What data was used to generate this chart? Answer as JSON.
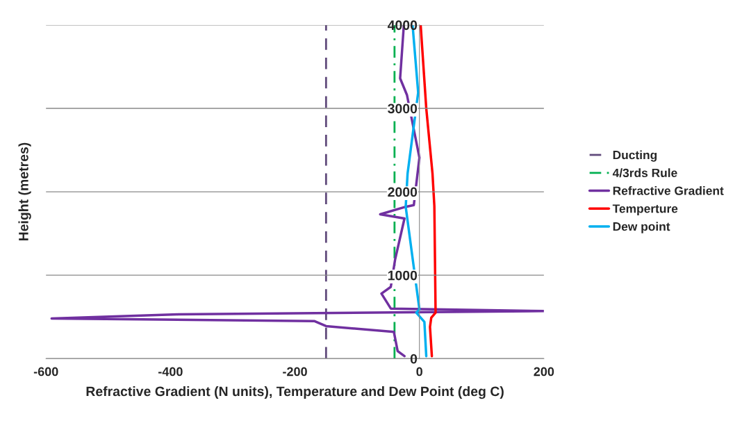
{
  "chart_data": {
    "type": "line",
    "xlabel": "Refractive Gradient (N units), Temperature and Dew Point (deg C)",
    "ylabel": "Height (metres)",
    "xlim": [
      -600,
      200
    ],
    "xticks": [
      -600,
      -400,
      -200,
      0,
      200
    ],
    "ylim": [
      0,
      4000
    ],
    "yticks": [
      0,
      1000,
      2000,
      3000,
      4000
    ],
    "grid": "y",
    "legend": "right",
    "series": [
      {
        "name": "Ducting",
        "color": "#604a7b",
        "line_style": "dashed",
        "x": [
          -150,
          -150
        ],
        "values": [
          0,
          4000
        ]
      },
      {
        "name": "4/3rds Rule",
        "color": "#00b050",
        "line_style": "dashdot",
        "x": [
          -40,
          -40
        ],
        "values": [
          0,
          4000
        ]
      },
      {
        "name": "Refractive Gradient",
        "color": "#7030a0",
        "line_style": "solid",
        "x": [
          -24,
          -35,
          -41,
          -150,
          -169,
          -591,
          -388,
          200,
          -46,
          -61,
          -46,
          -39,
          -24,
          -63,
          -22,
          -9,
          0,
          -20,
          -31,
          -25
        ],
        "values": [
          30,
          90,
          320,
          390,
          450,
          480,
          530,
          570,
          600,
          780,
          860,
          1190,
          1680,
          1730,
          1820,
          1840,
          2410,
          3160,
          3360,
          4000
        ]
      },
      {
        "name": "Temperture",
        "color": "#ff0000",
        "line_style": "solid",
        "x": [
          20,
          17,
          19,
          26,
          24,
          21,
          11,
          2
        ],
        "values": [
          30,
          380,
          490,
          550,
          1830,
          2220,
          3000,
          4000
        ]
      },
      {
        "name": "Dew point",
        "color": "#00b0f0",
        "line_style": "solid",
        "x": [
          11,
          8,
          -5,
          0,
          -22,
          -19,
          -2,
          -11
        ],
        "values": [
          30,
          440,
          550,
          590,
          1820,
          2220,
          3190,
          4000
        ]
      }
    ]
  }
}
